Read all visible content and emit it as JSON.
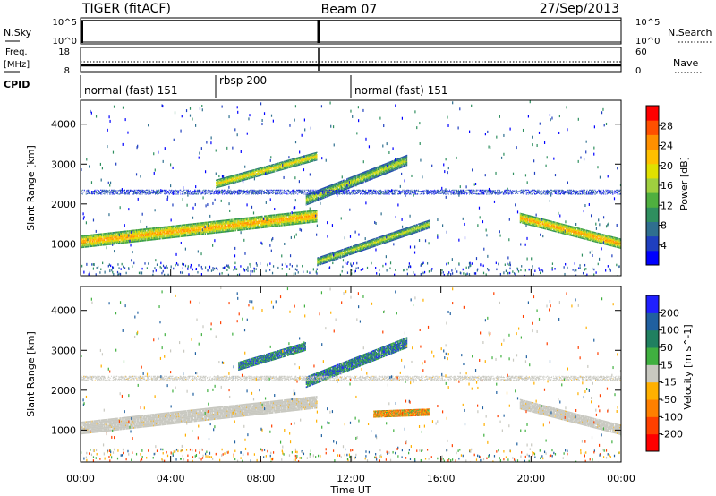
{
  "header": {
    "radar": "TIGER (fitACF)",
    "beam": "Beam 07",
    "date": "27/Sep/2013"
  },
  "noise_panel": {
    "left_label": "N.Sky",
    "right_label": "N.Search",
    "left_ticks": [
      "10^5",
      "10^0"
    ],
    "right_ticks": [
      "10^5",
      "10^0"
    ]
  },
  "freq_panel": {
    "left_label_1": "Freq.",
    "left_label_2": "[MHz]",
    "right_label": "Nave",
    "left_ticks": [
      "18",
      "8"
    ],
    "right_ticks": [
      "60",
      "0"
    ]
  },
  "cpid_panel": {
    "label": "CPID",
    "segments": [
      {
        "start_hour": 0,
        "end_hour": 6.0,
        "label": "normal (fast) 151"
      },
      {
        "start_hour": 6.0,
        "end_hour": 12.0,
        "label": "rbsp 200"
      },
      {
        "start_hour": 12.0,
        "end_hour": 24,
        "label": "normal (fast) 151"
      }
    ]
  },
  "x_axis": {
    "label": "Time UT",
    "ticks": [
      "00:00",
      "04:00",
      "08:00",
      "12:00",
      "16:00",
      "20:00",
      "00:00"
    ]
  },
  "chart_data": [
    {
      "type": "heatmap",
      "title": "",
      "ylabel": "Slant Range [km]",
      "xlabel": "",
      "xlim": [
        0,
        24
      ],
      "ylim": [
        200,
        4600
      ],
      "yticks": [
        "1000",
        "2000",
        "3000",
        "4000"
      ],
      "colorbar": {
        "label": "Power [dB]",
        "ticks": [
          "4",
          "8",
          "12",
          "16",
          "20",
          "24",
          "28"
        ],
        "range": [
          0,
          32
        ],
        "colors": [
          "#0000ff",
          "#1f3fbf",
          "#2f6f8f",
          "#2f8f5f",
          "#4faf3f",
          "#9fcf3f",
          "#e0e000",
          "#ffc000",
          "#ff9000",
          "#ff5000",
          "#ff0000"
        ]
      },
      "features": [
        {
          "name": "main-band",
          "start_hour": 0,
          "end_hour": 10.5,
          "range_start": 1050,
          "range_end": 1700,
          "width": 320,
          "value": 24
        },
        {
          "name": "main-band-night",
          "start_hour": 19.5,
          "end_hour": 24,
          "range_start": 1650,
          "range_end": 1000,
          "width": 260,
          "value": 24
        },
        {
          "name": "upper-arc",
          "start_hour": 6,
          "end_hour": 10.5,
          "range_start": 2500,
          "range_end": 3200,
          "width": 220,
          "value": 22
        },
        {
          "name": "diagonal-band",
          "start_hour": 10,
          "end_hour": 14.5,
          "range_start": 2100,
          "range_end": 3100,
          "width": 280,
          "value": 20
        },
        {
          "name": "lower-arc",
          "start_hour": 10.5,
          "end_hour": 15.5,
          "range_start": 550,
          "range_end": 1500,
          "width": 220,
          "value": 18
        },
        {
          "name": "weak-2300",
          "start_hour": 0,
          "end_hour": 24,
          "range_start": 2300,
          "range_end": 2300,
          "width": 120,
          "value": 6
        }
      ]
    },
    {
      "type": "heatmap",
      "title": "",
      "ylabel": "Slant Range [km]",
      "xlabel": "Time UT",
      "xlim": [
        0,
        24
      ],
      "ylim": [
        200,
        4600
      ],
      "yticks": [
        "1000",
        "2000",
        "3000",
        "4000"
      ],
      "colorbar": {
        "label": "Velocity [m s^-1]",
        "ticks": [
          "200",
          "100",
          "50",
          "15",
          "-15",
          "-50",
          "-100",
          "-200"
        ],
        "colors": [
          "#2020ff",
          "#2060a0",
          "#208060",
          "#40b040",
          "#c8c8c0",
          "#ffb000",
          "#ff8000",
          "#ff4000",
          "#ff0000"
        ]
      },
      "features": [
        {
          "name": "ground-scatter",
          "start_hour": 0,
          "end_hour": 10.5,
          "range_start": 1050,
          "range_end": 1700,
          "width": 320,
          "value": 0
        },
        {
          "name": "ground-scatter-night",
          "start_hour": 19.5,
          "end_hour": 24,
          "range_start": 1650,
          "range_end": 1000,
          "width": 260,
          "value": 0
        },
        {
          "name": "upper-arc",
          "start_hour": 7,
          "end_hour": 10,
          "range_start": 2600,
          "range_end": 3100,
          "width": 220,
          "value": 70
        },
        {
          "name": "diagonal-band",
          "start_hour": 10,
          "end_hour": 14.5,
          "range_start": 2200,
          "range_end": 3200,
          "width": 280,
          "value": 120
        },
        {
          "name": "lower-arc",
          "start_hour": 13,
          "end_hour": 15.5,
          "range_start": 1400,
          "range_end": 1450,
          "width": 180,
          "value": -80
        },
        {
          "name": "weak-2300",
          "start_hour": 0,
          "end_hour": 24,
          "range_start": 2300,
          "range_end": 2300,
          "width": 120,
          "value": 0
        }
      ]
    }
  ]
}
